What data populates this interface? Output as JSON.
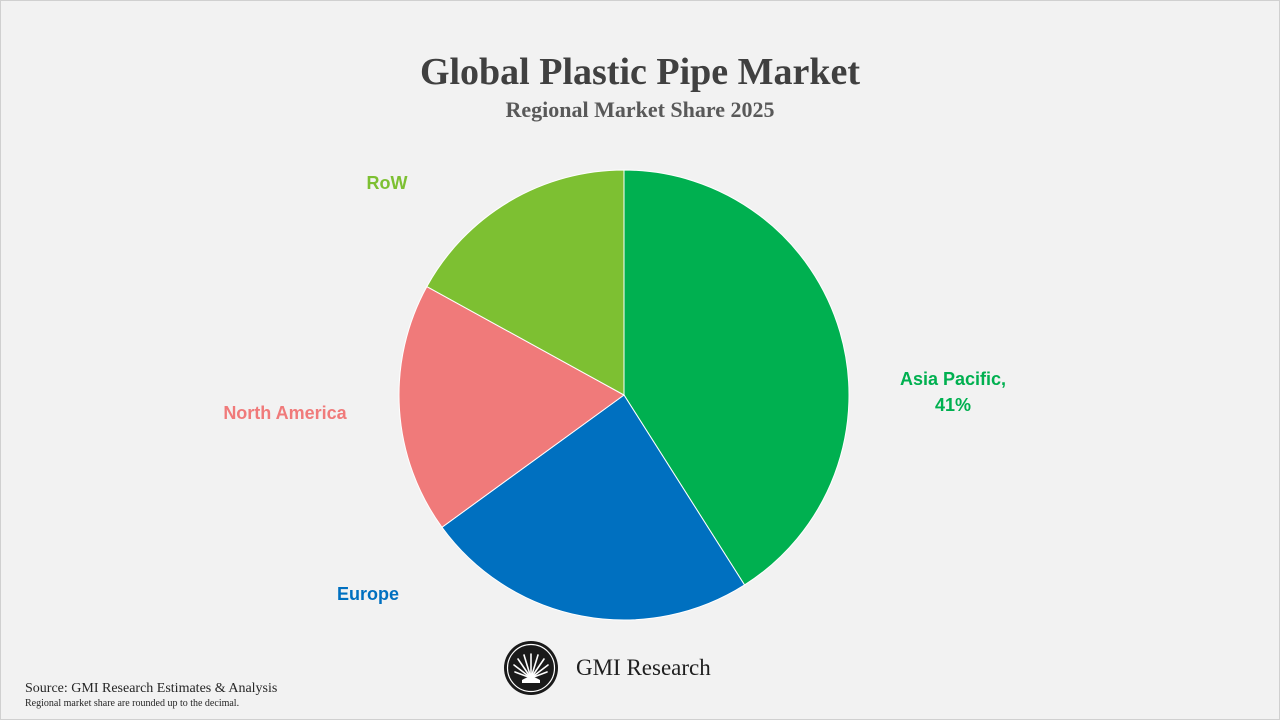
{
  "chart_data": {
    "type": "pie",
    "title": "Global Plastic Pipe Market",
    "subtitle": "Regional Market Share 2025",
    "slices": [
      {
        "label": "Asia Pacific",
        "value": 41,
        "data_label": "41%",
        "color": "#00b050"
      },
      {
        "label": "Europe",
        "value": 24,
        "data_label": "",
        "color": "#0070c0"
      },
      {
        "label": "North America",
        "value": 18,
        "data_label": "",
        "color": "#f07a7a"
      },
      {
        "label": "RoW",
        "value": 17,
        "data_label": "",
        "color": "#7dc032"
      }
    ],
    "legend": "none"
  },
  "brand": {
    "name": "GMI Research",
    "logo_icon": "fan-palm-icon"
  },
  "footer": {
    "source": "Source: GMI Research Estimates & Analysis",
    "note": "Regional market share are rounded up to the decimal."
  }
}
